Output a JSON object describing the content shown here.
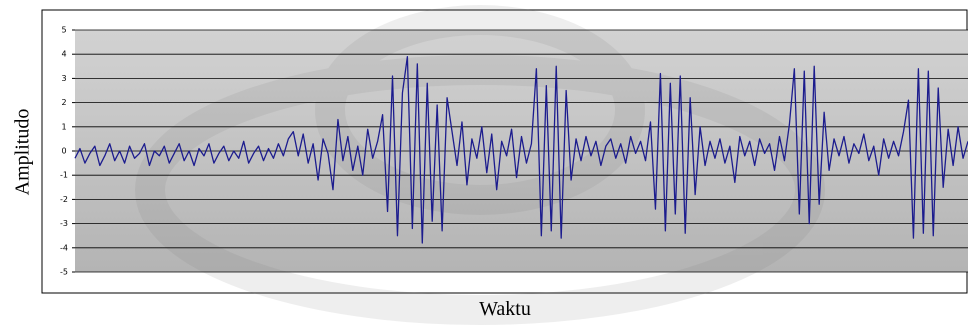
{
  "chart_data": {
    "type": "line",
    "ylabel": "Amplitudo",
    "xlabel": "Waktu",
    "color": "#1c1c8e",
    "ylim": [
      -5,
      5
    ],
    "yticks": [
      5,
      4,
      3,
      2,
      1,
      0,
      -1,
      -2,
      -3,
      -4,
      -5
    ],
    "grid": true,
    "values": [
      -0.3,
      0.1,
      -0.5,
      -0.1,
      0.2,
      -0.6,
      -0.2,
      0.3,
      -0.4,
      0,
      -0.5,
      0.2,
      -0.3,
      -0.1,
      0.3,
      -0.6,
      0,
      -0.2,
      0.2,
      -0.5,
      -0.1,
      0.3,
      -0.4,
      0,
      -0.6,
      0.1,
      -0.2,
      0.3,
      -0.5,
      -0.1,
      0.2,
      -0.4,
      0,
      -0.3,
      0.4,
      -0.5,
      -0.1,
      0.2,
      -0.4,
      0.1,
      -0.3,
      0.3,
      -0.2,
      0.5,
      0.8,
      -0.2,
      0.7,
      -0.5,
      0.3,
      -1.2,
      0.5,
      -0.1,
      -1.6,
      1.3,
      -0.4,
      0.6,
      -0.8,
      0.2,
      -1.0,
      0.9,
      -0.3,
      0.4,
      1.5,
      -2.5,
      3.1,
      -3.5,
      2.4,
      3.9,
      -3.2,
      3.6,
      -3.8,
      2.8,
      -2.9,
      1.9,
      -3.3,
      2.2,
      0.8,
      -0.6,
      1.2,
      -1.4,
      0.5,
      -0.3,
      1.0,
      -0.9,
      0.7,
      -1.6,
      0.4,
      -0.2,
      0.9,
      -1.1,
      0.6,
      -0.5,
      0.3,
      3.4,
      -3.5,
      2.7,
      -3.3,
      3.5,
      -3.6,
      2.5,
      -1.2,
      0.5,
      -0.4,
      0.6,
      -0.2,
      0.4,
      -0.6,
      0.2,
      0.5,
      -0.3,
      0.3,
      -0.5,
      0.6,
      -0.1,
      0.4,
      -0.4,
      1.2,
      -2.4,
      3.2,
      -3.3,
      2.8,
      -2.6,
      3.1,
      -3.4,
      2.2,
      -1.8,
      1.0,
      -0.6,
      0.4,
      -0.3,
      0.5,
      -0.5,
      0.2,
      -1.3,
      0.6,
      -0.2,
      0.4,
      -0.6,
      0.5,
      -0.1,
      0.3,
      -0.8,
      0.6,
      -0.4,
      1.1,
      3.4,
      -2.6,
      3.3,
      -3.0,
      3.5,
      -2.2,
      1.6,
      -0.8,
      0.5,
      -0.2,
      0.6,
      -0.5,
      0.3,
      -0.1,
      0.7,
      -0.4,
      0.2,
      -1.0,
      0.5,
      -0.3,
      0.4,
      -0.2,
      0.8,
      2.1,
      -3.6,
      3.4,
      -3.4,
      3.3,
      -3.5,
      2.6,
      -1.5,
      0.9,
      -0.6,
      1.0,
      -0.3,
      0.4
    ]
  }
}
